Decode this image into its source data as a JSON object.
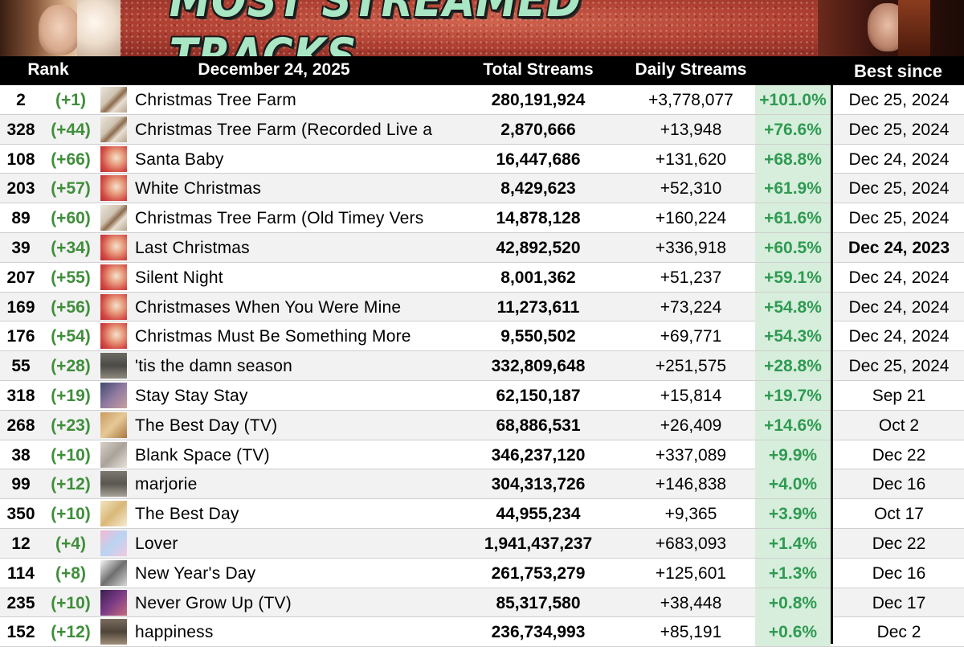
{
  "banner": {
    "title": "MOST STREAMED TRACKS"
  },
  "header": {
    "rank": "Rank",
    "date": "December 24, 2025",
    "total": "Total Streams",
    "daily": "Daily Streams",
    "best": "Best since"
  },
  "colors": {
    "change_green": "#3f8e3a",
    "pct_green": "#2f9a52",
    "pct_bg": "#d7eedc",
    "title_mint": "#a8e6c4"
  },
  "rows": [
    {
      "rank": "2",
      "change": "(+1)",
      "art": "christmas-tree-farm-cover",
      "title": "Christmas Tree Farm",
      "total": "280,191,924",
      "daily": "+3,778,077",
      "pct": "+101.0%",
      "best": "Dec 25, 2024"
    },
    {
      "rank": "328",
      "change": "(+44)",
      "art": "christmas-tree-farm-cover",
      "title": "Christmas Tree Farm (Recorded Live a",
      "total": "2,870,666",
      "daily": "+13,948",
      "pct": "+76.6%",
      "best": "Dec 25, 2024"
    },
    {
      "rank": "108",
      "change": "(+66)",
      "art": "santa-baby-cover",
      "title": "Santa Baby",
      "total": "16,447,686",
      "daily": "+131,620",
      "pct": "+68.8%",
      "best": "Dec 24, 2024"
    },
    {
      "rank": "203",
      "change": "(+57)",
      "art": "santa-baby-cover",
      "title": "White Christmas",
      "total": "8,429,623",
      "daily": "+52,310",
      "pct": "+61.9%",
      "best": "Dec 25, 2024"
    },
    {
      "rank": "89",
      "change": "(+60)",
      "art": "christmas-tree-farm-cover",
      "title": "Christmas Tree Farm (Old Timey Vers",
      "total": "14,878,128",
      "daily": "+160,224",
      "pct": "+61.6%",
      "best": "Dec 25, 2024"
    },
    {
      "rank": "39",
      "change": "(+34)",
      "art": "santa-baby-cover",
      "title": "Last Christmas",
      "total": "42,892,520",
      "daily": "+336,918",
      "pct": "+60.5%",
      "best": "Dec 24, 2023",
      "best_bold": true
    },
    {
      "rank": "207",
      "change": "(+55)",
      "art": "santa-baby-cover",
      "title": "Silent Night",
      "total": "8,001,362",
      "daily": "+51,237",
      "pct": "+59.1%",
      "best": "Dec 24, 2024"
    },
    {
      "rank": "169",
      "change": "(+56)",
      "art": "santa-baby-cover",
      "title": "Christmases When You Were Mine",
      "total": "11,273,611",
      "daily": "+73,224",
      "pct": "+54.8%",
      "best": "Dec 24, 2024"
    },
    {
      "rank": "176",
      "change": "(+54)",
      "art": "santa-baby-cover",
      "title": "Christmas Must Be Something More",
      "total": "9,550,502",
      "daily": "+69,771",
      "pct": "+54.3%",
      "best": "Dec 24, 2024"
    },
    {
      "rank": "55",
      "change": "(+28)",
      "art": "evermore-cover",
      "title": "'tis the damn season",
      "total": "332,809,648",
      "daily": "+251,575",
      "pct": "+28.8%",
      "best": "Dec 25, 2024"
    },
    {
      "rank": "318",
      "change": "(+19)",
      "art": "red-tv-cover",
      "title": "Stay Stay Stay",
      "total": "62,150,187",
      "daily": "+15,814",
      "pct": "+19.7%",
      "best": "Sep 21"
    },
    {
      "rank": "268",
      "change": "(+23)",
      "art": "fearless-tv-cover",
      "title": "The Best Day (TV)",
      "total": "68,886,531",
      "daily": "+26,409",
      "pct": "+14.6%",
      "best": "Oct 2"
    },
    {
      "rank": "38",
      "change": "(+10)",
      "art": "1989-tv-cover",
      "title": "Blank Space (TV)",
      "total": "346,237,120",
      "daily": "+337,089",
      "pct": "+9.9%",
      "best": "Dec 22"
    },
    {
      "rank": "99",
      "change": "(+12)",
      "art": "evermore-cover",
      "title": "marjorie",
      "total": "304,313,726",
      "daily": "+146,838",
      "pct": "+4.0%",
      "best": "Dec 16"
    },
    {
      "rank": "350",
      "change": "(+10)",
      "art": "fearless-cover",
      "title": "The Best Day",
      "total": "44,955,234",
      "daily": "+9,365",
      "pct": "+3.9%",
      "best": "Oct 17"
    },
    {
      "rank": "12",
      "change": "(+4)",
      "art": "lover-cover",
      "title": "Lover",
      "total": "1,941,437,237",
      "daily": "+683,093",
      "pct": "+1.4%",
      "best": "Dec 22"
    },
    {
      "rank": "114",
      "change": "(+8)",
      "art": "reputation-cover",
      "title": "New Year's Day",
      "total": "261,753,279",
      "daily": "+125,601",
      "pct": "+1.3%",
      "best": "Dec 16"
    },
    {
      "rank": "235",
      "change": "(+10)",
      "art": "speak-now-tv-cover",
      "title": "Never Grow Up (TV)",
      "total": "85,317,580",
      "daily": "+38,448",
      "pct": "+0.8%",
      "best": "Dec 17"
    },
    {
      "rank": "152",
      "change": "(+12)",
      "art": "evermore-cover",
      "title": "happiness",
      "total": "236,734,993",
      "daily": "+85,191",
      "pct": "+0.6%",
      "best": "Dec 2"
    }
  ]
}
